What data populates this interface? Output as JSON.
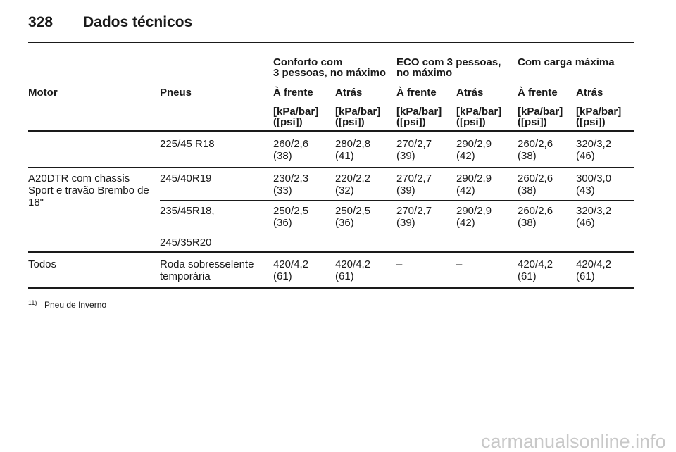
{
  "header": {
    "page_number": "328",
    "title": "Dados técnicos"
  },
  "table": {
    "group_headers": [
      [
        "Conforto com",
        "3 pessoas, no máximo"
      ],
      [
        "ECO com 3 pessoas,",
        "no máximo"
      ],
      [
        "Com carga máxima"
      ]
    ],
    "column_headers": [
      "Motor",
      "Pneus",
      "À frente",
      "Atrás",
      "À frente",
      "Atrás",
      "À frente",
      "Atrás"
    ],
    "units": [
      [
        "[kPa/bar]",
        "([psi])"
      ],
      [
        "[kPa/bar]",
        "([psi])"
      ],
      [
        "[kPa/bar]",
        "([psi])"
      ],
      [
        "[kPa/bar]",
        "([psi])"
      ],
      [
        "[kPa/bar]",
        "([psi])"
      ],
      [
        "[kPa/bar]",
        "([psi])"
      ]
    ],
    "rows": [
      {
        "tires": [
          "225/45 R18"
        ],
        "values": [
          [
            "260/2,6",
            "(38)"
          ],
          [
            "280/2,8",
            "(41)"
          ],
          [
            "270/2,7",
            "(39)"
          ],
          [
            "290/2,9",
            "(42)"
          ],
          [
            "260/2,6",
            "(38)"
          ],
          [
            "320/3,2",
            "(46)"
          ]
        ]
      },
      {
        "motor": [
          "A20DTR com chassis",
          "Sport e travão Brembo de",
          "18\""
        ],
        "tires": [
          "245/40R19"
        ],
        "values": [
          [
            "230/2,3",
            "(33)"
          ],
          [
            "220/2,2",
            "(32)"
          ],
          [
            "270/2,7",
            "(39)"
          ],
          [
            "290/2,9",
            "(42)"
          ],
          [
            "260/2,6",
            "(38)"
          ],
          [
            "300/3,0",
            "(43)"
          ]
        ]
      },
      {
        "tires": [
          "235/45R18,",
          "245/35R20"
        ],
        "values": [
          [
            "250/2,5",
            "(36)"
          ],
          [
            "250/2,5",
            "(36)"
          ],
          [
            "270/2,7",
            "(39)"
          ],
          [
            "290/2,9",
            "(42)"
          ],
          [
            "260/2,6",
            "(38)"
          ],
          [
            "320/3,2",
            "(46)"
          ]
        ]
      },
      {
        "motor": [
          "Todos"
        ],
        "tires": [
          "Roda sobresselente",
          "temporária"
        ],
        "values": [
          [
            "420/4,2",
            "(61)"
          ],
          [
            "420/4,2",
            "(61)"
          ],
          [
            "–"
          ],
          [
            "–"
          ],
          [
            "420/4,2",
            "(61)"
          ],
          [
            "420/4,2",
            "(61)"
          ]
        ]
      }
    ]
  },
  "footnote": {
    "marker": "11)",
    "text": "Pneu de Inverno"
  },
  "watermark": "carmanualsonline.info"
}
